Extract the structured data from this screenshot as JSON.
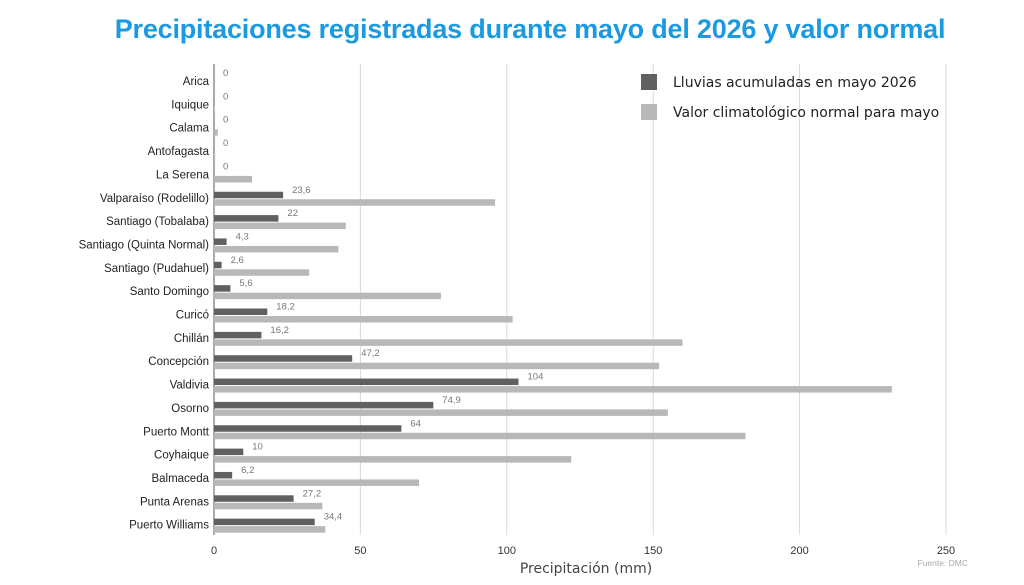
{
  "chart_data": {
    "type": "bar",
    "orientation": "horizontal",
    "title": "Precipitaciones registradas durante mayo del 2026 y valor normal",
    "xlabel": "Precipitación (mm)",
    "ylabel": "",
    "xlim": [
      0,
      250
    ],
    "xticks": [
      0,
      50,
      100,
      150,
      200,
      250
    ],
    "grid": true,
    "legend_position": "top-right",
    "source": "Fuente: DMC",
    "categories": [
      "Arica",
      "Iquique",
      "Calama",
      "Antofagasta",
      "La Serena",
      "Valparaíso (Rodelillo)",
      "Santiago (Tobalaba)",
      "Santiago (Quinta Normal)",
      "Santiago (Pudahuel)",
      "Santo Domingo",
      "Curicó",
      "Chillán",
      "Concepción",
      "Valdivia",
      "Osorno",
      "Puerto Montt",
      "Coyhaique",
      "Balmaceda",
      "Punta Arenas",
      "Puerto Williams"
    ],
    "series": [
      {
        "name": "Lluvias acumuladas en mayo 2026",
        "color": "#606060",
        "values": [
          0,
          0,
          0,
          0,
          0,
          23.6,
          22,
          4.3,
          2.6,
          5.6,
          18.2,
          16.2,
          47.2,
          104,
          74.9,
          64,
          10,
          6.2,
          27.2,
          34.4
        ],
        "labels": [
          "0",
          "0",
          "0",
          "0",
          "0",
          "23,6",
          "22",
          "4,3",
          "2,6",
          "5,6",
          "18,2",
          "16,2",
          "47,2",
          "104",
          "74,9",
          "64",
          "10",
          "6,2",
          "27,2",
          "34,4"
        ]
      },
      {
        "name": "Valor climatológico normal para mayo",
        "color": "#b8b8b8",
        "values": [
          0,
          0.3,
          1.3,
          0.4,
          13,
          96,
          45,
          42.5,
          32.5,
          77.5,
          102,
          160,
          152,
          231.5,
          155,
          181.5,
          122,
          70,
          37,
          38
        ]
      }
    ]
  }
}
